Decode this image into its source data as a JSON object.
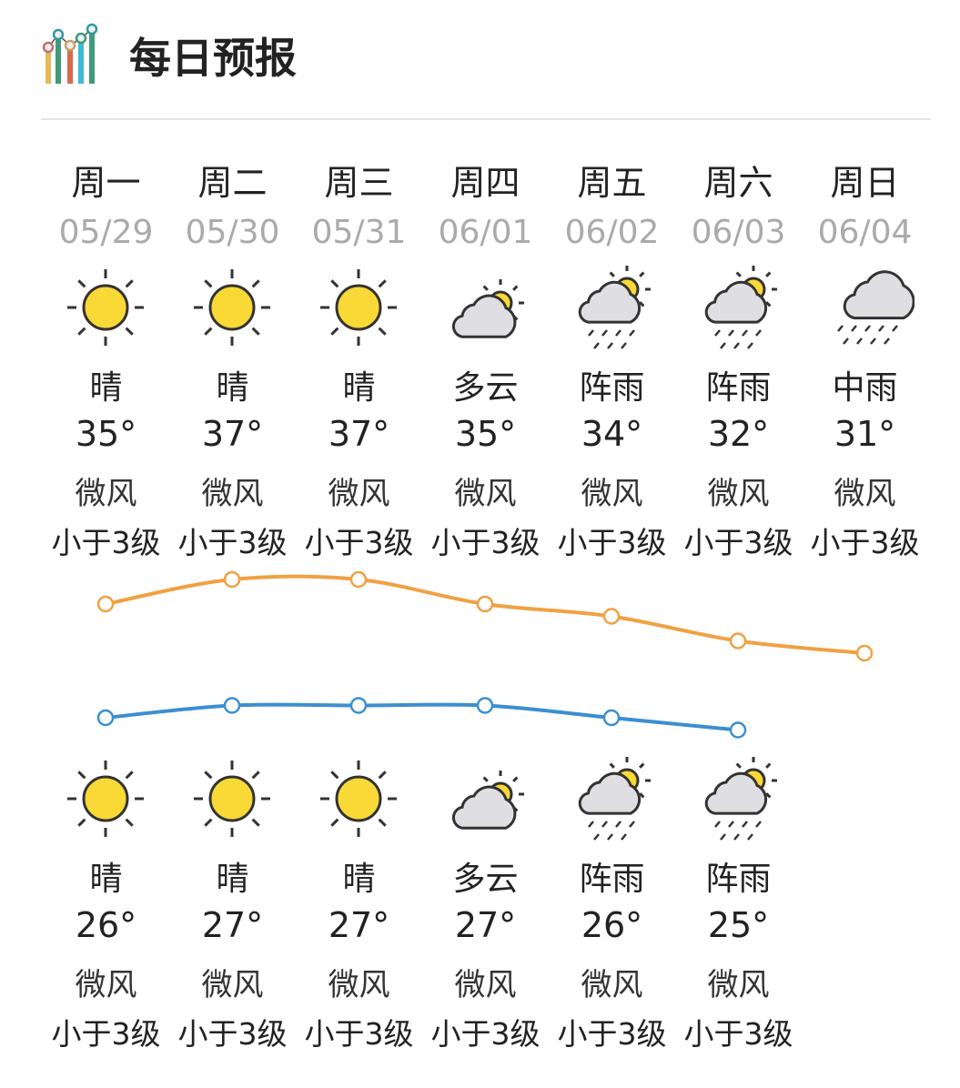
{
  "header": {
    "title": "每日预报",
    "icon": "bar-chart-icon"
  },
  "colors": {
    "high_line": "#f0a142",
    "low_line": "#3b8fd0",
    "sun": "#f9d936",
    "cloud": "#dfdfe3",
    "outline": "#333333"
  },
  "days": [
    {
      "day": "周一",
      "date": "05/29",
      "high": {
        "icon": "sunny",
        "cond": "晴",
        "temp": "35°",
        "wind": "微风",
        "level": "小于3级"
      },
      "low": {
        "icon": "sunny",
        "cond": "晴",
        "temp": "26°",
        "wind": "微风",
        "level": "小于3级"
      }
    },
    {
      "day": "周二",
      "date": "05/30",
      "high": {
        "icon": "sunny",
        "cond": "晴",
        "temp": "37°",
        "wind": "微风",
        "level": "小于3级"
      },
      "low": {
        "icon": "sunny",
        "cond": "晴",
        "temp": "27°",
        "wind": "微风",
        "level": "小于3级"
      }
    },
    {
      "day": "周三",
      "date": "05/31",
      "high": {
        "icon": "sunny",
        "cond": "晴",
        "temp": "37°",
        "wind": "微风",
        "level": "小于3级"
      },
      "low": {
        "icon": "sunny",
        "cond": "晴",
        "temp": "27°",
        "wind": "微风",
        "level": "小于3级"
      }
    },
    {
      "day": "周四",
      "date": "06/01",
      "high": {
        "icon": "partly-cloudy",
        "cond": "多云",
        "temp": "35°",
        "wind": "微风",
        "level": "小于3级"
      },
      "low": {
        "icon": "partly-cloudy",
        "cond": "多云",
        "temp": "27°",
        "wind": "微风",
        "level": "小于3级"
      }
    },
    {
      "day": "周五",
      "date": "06/02",
      "high": {
        "icon": "shower",
        "cond": "阵雨",
        "temp": "34°",
        "wind": "微风",
        "level": "小于3级"
      },
      "low": {
        "icon": "shower",
        "cond": "阵雨",
        "temp": "26°",
        "wind": "微风",
        "level": "小于3级"
      }
    },
    {
      "day": "周六",
      "date": "06/03",
      "high": {
        "icon": "shower",
        "cond": "阵雨",
        "temp": "32°",
        "wind": "微风",
        "level": "小于3级"
      },
      "low": {
        "icon": "shower",
        "cond": "阵雨",
        "temp": "25°",
        "wind": "微风",
        "level": "小于3级"
      }
    },
    {
      "day": "周日",
      "date": "06/04",
      "high": {
        "icon": "moderate-rain",
        "cond": "中雨",
        "temp": "31°",
        "wind": "微风",
        "level": "小于3级"
      },
      "low": null
    }
  ],
  "chart_data": {
    "type": "line",
    "categories": [
      "05/29",
      "05/30",
      "05/31",
      "06/01",
      "06/02",
      "06/03",
      "06/04"
    ],
    "series": [
      {
        "values": [
          35,
          37,
          37,
          35,
          34,
          32,
          31
        ]
      },
      {
        "values": [
          26,
          27,
          27,
          27,
          26,
          25,
          null
        ]
      }
    ]
  }
}
